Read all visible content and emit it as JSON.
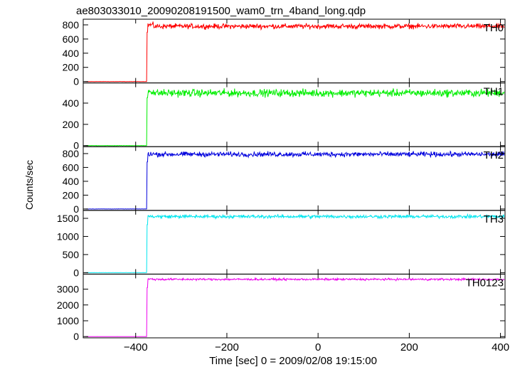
{
  "chart_data": {
    "type": "line",
    "title": "ae803033010_20090208191500_wam0_trn_4band_long.qdp",
    "xlabel": "Time [sec] 0 = 2009/02/08 19:15:00",
    "ylabel": "Counts/sec",
    "xlim": [
      -515,
      410
    ],
    "x_ticks": [
      -400,
      -200,
      0,
      200,
      400
    ],
    "x_tick_labels": [
      "−400",
      "−200",
      "0",
      "200",
      "400"
    ],
    "onset_time": -375,
    "grid": false,
    "legend": "none",
    "panels": [
      {
        "name": "TH0",
        "color": "#ff0000",
        "ylim": [
          -20,
          880
        ],
        "yticks": [
          0,
          200,
          400,
          600,
          800
        ],
        "pre": 0,
        "post": 780,
        "noise": 30,
        "peak": 820
      },
      {
        "name": "TH1",
        "color": "#00ee00",
        "ylim": [
          -10,
          590
        ],
        "yticks": [
          0,
          200,
          400
        ],
        "pre": 0,
        "post": 495,
        "noise": 30,
        "peak": 530
      },
      {
        "name": "TH2",
        "color": "#0000dd",
        "ylim": [
          -20,
          900
        ],
        "yticks": [
          0,
          200,
          400,
          600,
          800
        ],
        "pre": 0,
        "post": 790,
        "noise": 30,
        "peak": 800
      },
      {
        "name": "TH3",
        "color": "#00e5ee",
        "ylim": [
          -40,
          1720
        ],
        "yticks": [
          0,
          500,
          1000,
          1500
        ],
        "pre": 0,
        "post": 1550,
        "noise": 40,
        "peak": 1560
      },
      {
        "name": "TH0123",
        "color": "#ee00ee",
        "ylim": [
          -80,
          3950
        ],
        "yticks": [
          0,
          1000,
          2000,
          3000
        ],
        "pre": 0,
        "post": 3620,
        "noise": 55,
        "peak": 3650
      }
    ]
  }
}
